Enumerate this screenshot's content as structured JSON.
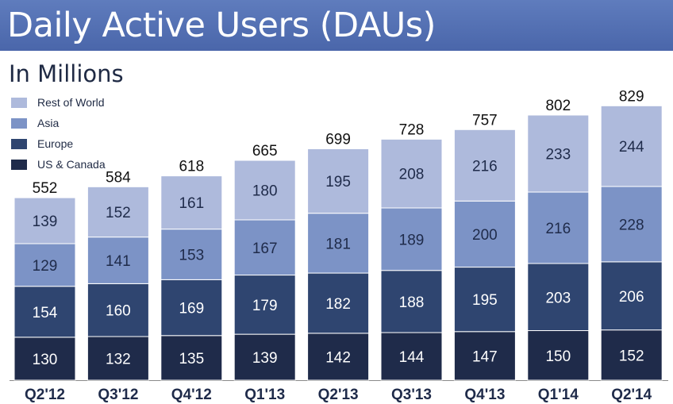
{
  "header": {
    "title": "Daily Active Users (DAUs)"
  },
  "chart_data": {
    "type": "bar",
    "stacked": true,
    "title": "Daily Active Users (DAUs)",
    "subtitle": "In Millions",
    "xlabel": "",
    "ylabel": "",
    "categories": [
      "Q2'12",
      "Q3'12",
      "Q4'12",
      "Q1'13",
      "Q2'13",
      "Q3'13",
      "Q4'13",
      "Q1'14",
      "Q2'14"
    ],
    "totals": [
      552,
      584,
      618,
      665,
      699,
      728,
      757,
      802,
      829
    ],
    "series": [
      {
        "name": "US & Canada",
        "color": "#1f2b4a",
        "values": [
          130,
          132,
          135,
          139,
          142,
          144,
          147,
          150,
          152
        ]
      },
      {
        "name": "Europe",
        "color": "#2f4570",
        "values": [
          154,
          160,
          169,
          179,
          182,
          188,
          195,
          203,
          206
        ]
      },
      {
        "name": "Asia",
        "color": "#7c93c6",
        "values": [
          129,
          141,
          153,
          167,
          181,
          189,
          200,
          216,
          228
        ]
      },
      {
        "name": "Rest of World",
        "color": "#aebadc",
        "values": [
          139,
          152,
          161,
          180,
          195,
          208,
          216,
          233,
          244
        ]
      }
    ],
    "legend_order": [
      "Rest of World",
      "Asia",
      "Europe",
      "US & Canada"
    ],
    "legend_position": "top-left",
    "grid": false
  }
}
